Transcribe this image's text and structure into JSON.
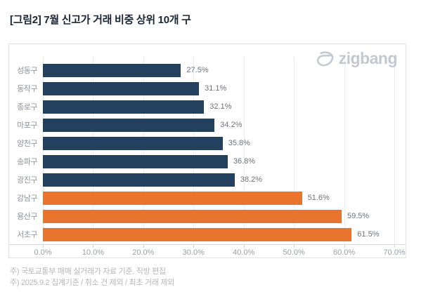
{
  "title": "[그림2] 7월 신고가 거래 비중 상위 10개 구",
  "logo": {
    "text": "zigbang",
    "color": "#c4c9d1"
  },
  "chart_data": {
    "type": "bar",
    "orientation": "horizontal",
    "title": "[그림2] 7월 신고가 거래 비중 상위 10개 구",
    "categories": [
      "성동구",
      "동작구",
      "종로구",
      "마포구",
      "양천구",
      "송파구",
      "광진구",
      "강남구",
      "용산구",
      "서초구"
    ],
    "values": [
      27.5,
      31.1,
      32.1,
      34.2,
      35.8,
      36.8,
      38.2,
      51.6,
      59.5,
      61.5
    ],
    "value_labels": [
      "27.5%",
      "31.1%",
      "32.1%",
      "34.2%",
      "35.8%",
      "36.8%",
      "38.2%",
      "51.6%",
      "59.5%",
      "61.5%"
    ],
    "bar_colors": [
      "#24405F",
      "#24405F",
      "#24405F",
      "#24405F",
      "#24405F",
      "#24405F",
      "#24405F",
      "#E8742E",
      "#E8742E",
      "#E8742E"
    ],
    "colors": {
      "navy": "#24405F",
      "orange": "#E8742E"
    },
    "xlim": [
      0,
      70
    ],
    "x_ticks": [
      "0.0%",
      "10.0%",
      "20.0%",
      "30.0%",
      "40.0%",
      "50.0%",
      "60.0%",
      "70.0%"
    ],
    "grid": true,
    "legend": "none",
    "xlabel": "",
    "ylabel": ""
  },
  "footnotes": [
    "주) 국토교통부 매매 실거래가 자료 기준, 직방 편집",
    "주) 2025.9.2 집계기준 / 취소 건 제외 / 최초 거래 제외"
  ]
}
